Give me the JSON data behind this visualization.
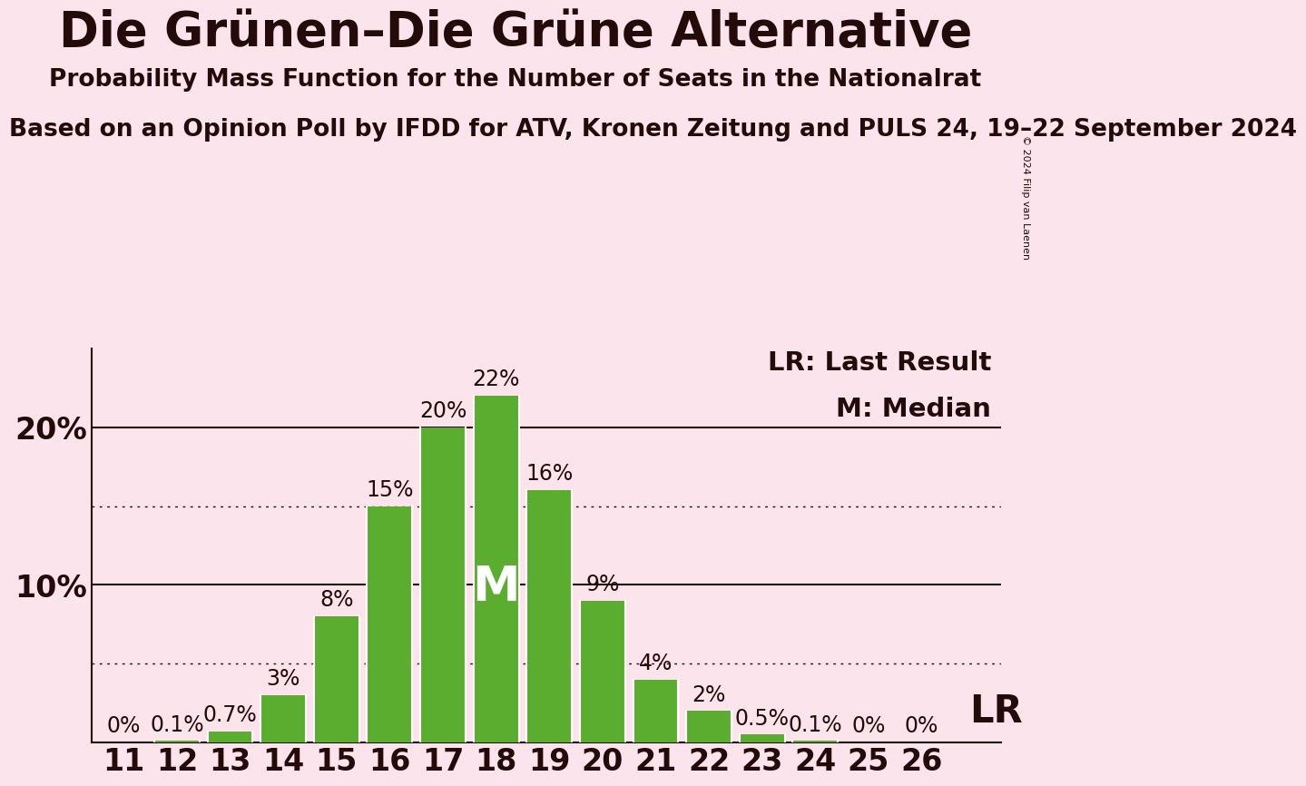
{
  "title": "Die Grünen–Die Grüne Alternative",
  "subtitle": "Probability Mass Function for the Number of Seats in the Nationalrat",
  "source_line": "Based on an Opinion Poll by IFDD for ATV, Kronen Zeitung and PULS 24, 19–22 September 2024",
  "copyright_text": "© 2024 Filip van Laenen",
  "seats": [
    11,
    12,
    13,
    14,
    15,
    16,
    17,
    18,
    19,
    20,
    21,
    22,
    23,
    24,
    25,
    26
  ],
  "probabilities": [
    0.0,
    0.1,
    0.7,
    3.0,
    8.0,
    15.0,
    20.0,
    22.0,
    16.0,
    9.0,
    4.0,
    2.0,
    0.5,
    0.1,
    0.0,
    0.0
  ],
  "labels": [
    "0%",
    "0.1%",
    "0.7%",
    "3%",
    "8%",
    "15%",
    "20%",
    "22%",
    "16%",
    "9%",
    "4%",
    "2%",
    "0.5%",
    "0.1%",
    "0%",
    "0%"
  ],
  "bar_color": "#5aad2e",
  "background_color": "#fce4ec",
  "text_color": "#250a0a",
  "median_seat": 18,
  "median_label": "M",
  "lr_label": "LR",
  "legend_lr": "LR: Last Result",
  "legend_m": "M: Median",
  "ylim_max": 25,
  "solid_gridlines": [
    10.0,
    20.0
  ],
  "dotted_gridlines": [
    5.0,
    15.0
  ],
  "title_fontsize": 38,
  "subtitle_fontsize": 19,
  "source_fontsize": 19,
  "bar_label_fontsize": 17,
  "axis_tick_fontsize": 24,
  "ytick_fontsize": 24,
  "legend_fontsize": 21,
  "median_label_fontsize": 38,
  "lr_label_fontsize": 30,
  "copyright_fontsize": 8
}
